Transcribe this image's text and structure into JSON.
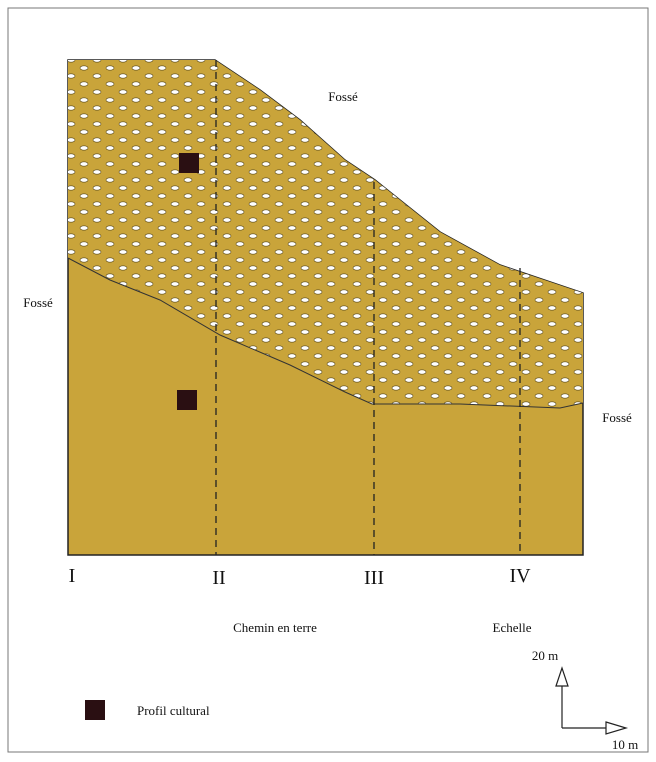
{
  "profiles": [
    "I",
    "II",
    "III",
    "IV"
  ],
  "ditch_labels": [
    "Fossé",
    "Fossé",
    "Fossé"
  ],
  "road_label": "Chemin en terre",
  "scale": {
    "title": "Echelle",
    "vertical": "20 m",
    "horizontal": "10 m"
  },
  "legend": {
    "label": "Profil cultural"
  }
}
